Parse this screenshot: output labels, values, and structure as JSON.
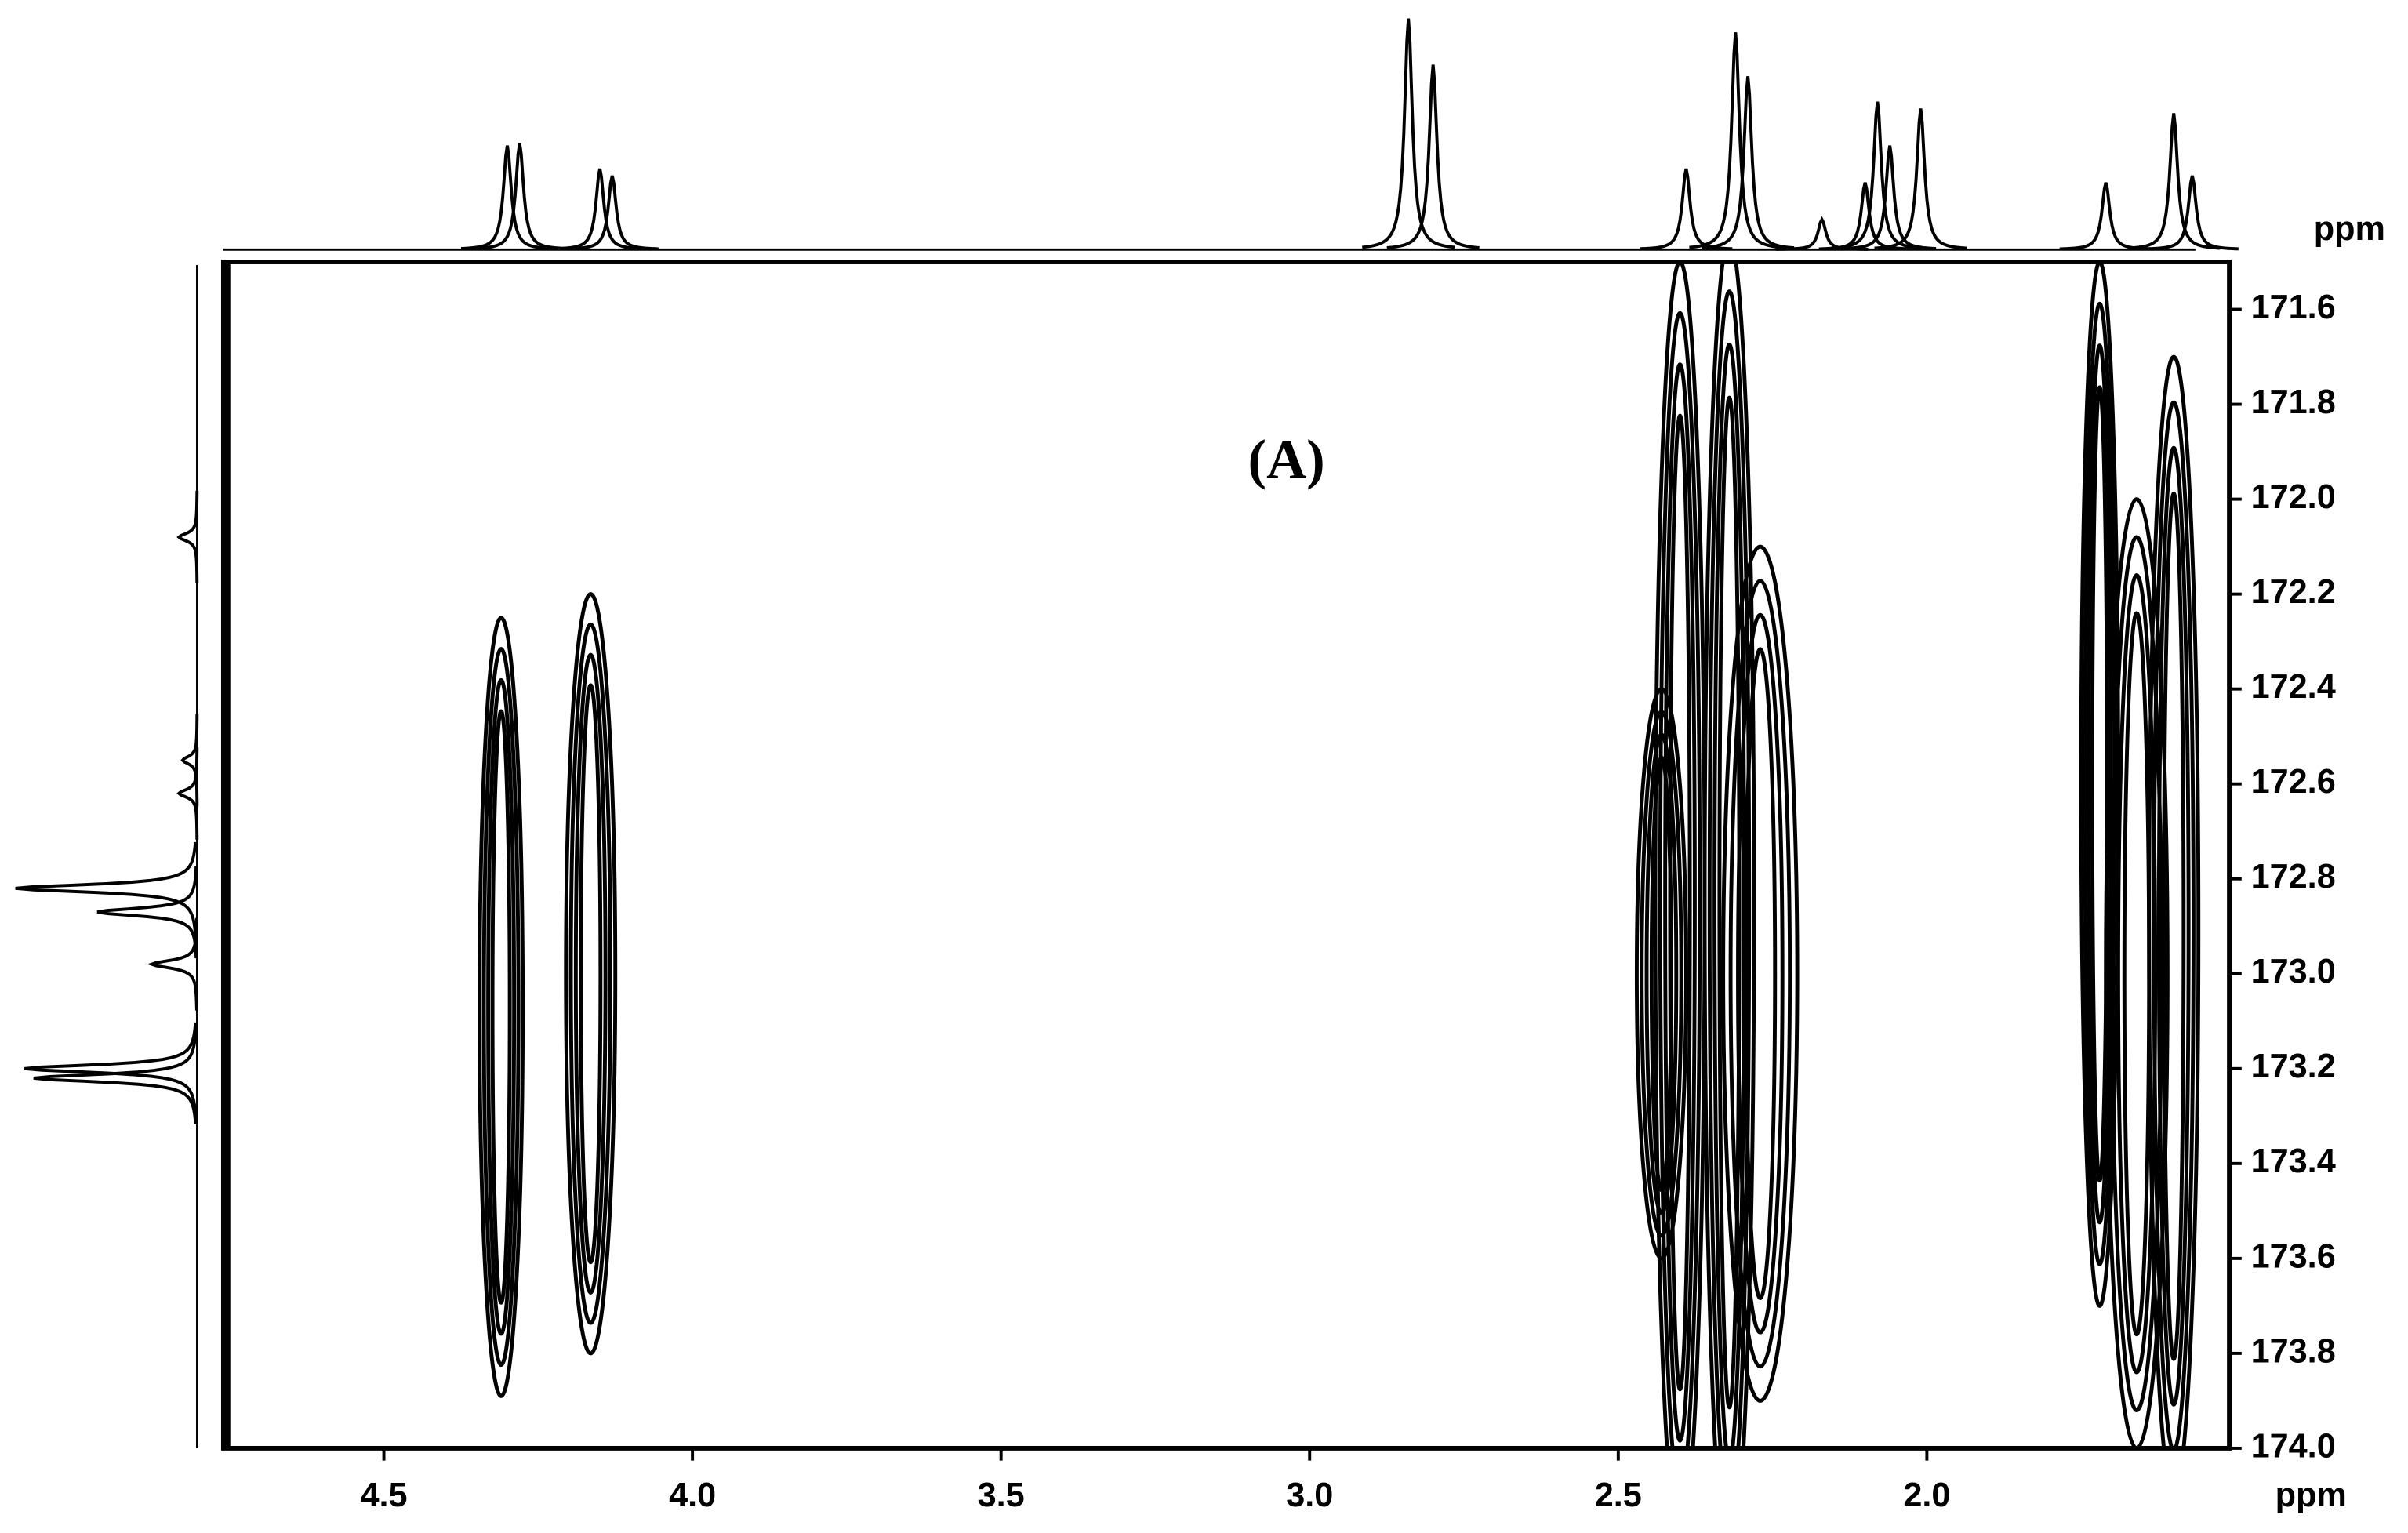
{
  "chart_data": {
    "type": "contour",
    "annotation": "(A)",
    "x_label": "ppm",
    "y_label": "ppm",
    "xlim": [
      4.76,
      1.51
    ],
    "ylim": [
      171.5,
      174.0
    ],
    "xticks": [
      4.5,
      {
        "value": 4,
        "label": "4.0"
      },
      3.5,
      {
        "value": 3,
        "label": "3.0"
      },
      2.5,
      {
        "value": 2,
        "label": "2.0"
      }
    ],
    "yticks": [
      171.6,
      171.8,
      {
        "value": 172,
        "label": "172.0"
      },
      172.2,
      172.4,
      172.6,
      172.8,
      {
        "value": 173,
        "label": "173.0"
      },
      173.2,
      173.4,
      173.6,
      173.8,
      {
        "value": 174,
        "label": "174.0"
      }
    ],
    "color": "#000000",
    "cross_peaks": [
      {
        "x": 4.31,
        "y": 173.07,
        "x_width": 0.035,
        "y_width": 0.82
      },
      {
        "x": 4.165,
        "y": 173.0,
        "x_width": 0.04,
        "y_width": 0.8
      },
      {
        "x": 2.43,
        "y": 173.0,
        "x_width": 0.04,
        "y_width": 0.6
      },
      {
        "x": 2.4,
        "y": 172.85,
        "x_width": 0.04,
        "y_width": 1.35
      },
      {
        "x": 2.32,
        "y": 172.85,
        "x_width": 0.04,
        "y_width": 1.4
      },
      {
        "x": 2.27,
        "y": 173.0,
        "x_width": 0.06,
        "y_width": 0.9
      },
      {
        "x": 1.72,
        "y": 172.6,
        "x_width": 0.03,
        "y_width": 1.1
      },
      {
        "x": 1.66,
        "y": 173.0,
        "x_width": 0.05,
        "y_width": 1.0
      },
      {
        "x": 1.6,
        "y": 172.9,
        "x_width": 0.04,
        "y_width": 1.2
      }
    ],
    "top_projection": [
      {
        "x": 4.3,
        "intensity": 45
      },
      {
        "x": 4.28,
        "intensity": 46
      },
      {
        "x": 4.15,
        "intensity": 35
      },
      {
        "x": 4.13,
        "intensity": 32
      },
      {
        "x": 2.84,
        "intensity": 100
      },
      {
        "x": 2.8,
        "intensity": 80
      },
      {
        "x": 2.39,
        "intensity": 35
      },
      {
        "x": 2.31,
        "intensity": 94
      },
      {
        "x": 2.29,
        "intensity": 75
      },
      {
        "x": 2.17,
        "intensity": 13
      },
      {
        "x": 2.1,
        "intensity": 29
      },
      {
        "x": 2.08,
        "intensity": 64
      },
      {
        "x": 2.06,
        "intensity": 45
      },
      {
        "x": 2.01,
        "intensity": 61
      },
      {
        "x": 1.71,
        "intensity": 29
      },
      {
        "x": 1.6,
        "intensity": 59
      },
      {
        "x": 1.57,
        "intensity": 32
      }
    ],
    "left_projection": [
      {
        "y": 172.08,
        "intensity": 10
      },
      {
        "y": 172.55,
        "intensity": 8
      },
      {
        "y": 172.62,
        "intensity": 10
      },
      {
        "y": 172.82,
        "intensity": 100
      },
      {
        "y": 172.87,
        "intensity": 55
      },
      {
        "y": 172.98,
        "intensity": 25
      },
      {
        "y": 173.2,
        "intensity": 95
      },
      {
        "y": 173.22,
        "intensity": 90
      }
    ]
  }
}
